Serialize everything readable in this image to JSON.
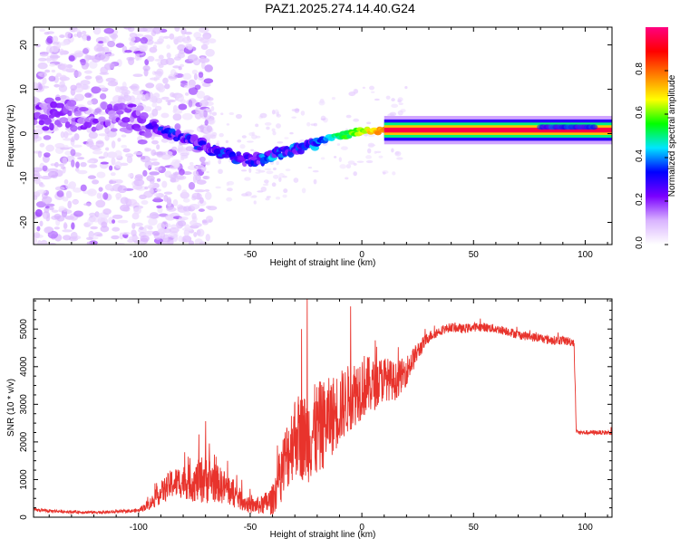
{
  "title": "PAZ1.2025.274.14.40.G24",
  "colors": {
    "snr_line": "#e8332c",
    "frame": "#000000",
    "background": "#ffffff"
  },
  "chart_data": [
    {
      "type": "heatmap",
      "name": "spectrogram",
      "xlabel": "Height of straight line (km)",
      "ylabel": "Frequency (Hz)",
      "xlim": [
        -147,
        112
      ],
      "ylim": [
        -25,
        24
      ],
      "xticks": [
        -100,
        -50,
        0,
        50,
        100
      ],
      "yticks": [
        -20,
        -10,
        0,
        10,
        20
      ],
      "ridge": [
        {
          "x": -147,
          "f": 4.0
        },
        {
          "x": -120,
          "f": 4.0
        },
        {
          "x": -100,
          "f": 3.5
        },
        {
          "x": -90,
          "f": 1.0
        },
        {
          "x": -80,
          "f": -1.0
        },
        {
          "x": -70,
          "f": -3.0
        },
        {
          "x": -60,
          "f": -5.0
        },
        {
          "x": -50,
          "f": -6.0
        },
        {
          "x": -40,
          "f": -5.0
        },
        {
          "x": -30,
          "f": -3.5
        },
        {
          "x": -20,
          "f": -2.0
        },
        {
          "x": -10,
          "f": -0.5
        },
        {
          "x": 0,
          "f": 0.5
        },
        {
          "x": 10,
          "f": 0.8
        },
        {
          "x": 50,
          "f": 0.8
        },
        {
          "x": 90,
          "f": 0.8
        },
        {
          "x": 112,
          "f": 0.8
        }
      ],
      "colorbar": {
        "label": "Normalized spectral amplitude",
        "range": [
          0.0,
          1.0
        ],
        "ticks": [
          0.0,
          0.2,
          0.4,
          0.6,
          0.8
        ],
        "tick_labels": [
          "0.0",
          "0.2",
          "0.4",
          "0.6",
          "0.8"
        ],
        "colormap": [
          "#ffffff",
          "#d9b3ff",
          "#7a00ff",
          "#0000ff",
          "#00e5ff",
          "#00ff00",
          "#ffff00",
          "#ff8000",
          "#ff0000",
          "#ff0080"
        ]
      }
    },
    {
      "type": "line",
      "name": "snr",
      "xlabel": "Height of straight line (km)",
      "ylabel": "SNR (10 * v/v)",
      "xlim": [
        -147,
        112
      ],
      "ylim": [
        0,
        5800
      ],
      "xticks": [
        -100,
        -50,
        0,
        50,
        100
      ],
      "yticks": [
        0,
        1000,
        2000,
        3000,
        4000,
        5000
      ],
      "series": [
        {
          "name": "SNR",
          "x": [
            -147,
            -140,
            -130,
            -120,
            -110,
            -100,
            -95,
            -90,
            -85,
            -80,
            -75,
            -70,
            -65,
            -60,
            -55,
            -50,
            -45,
            -40,
            -35,
            -30,
            -25,
            -20,
            -15,
            -10,
            -5,
            0,
            5,
            10,
            15,
            20,
            25,
            30,
            35,
            40,
            45,
            50,
            55,
            60,
            65,
            70,
            75,
            80,
            85,
            90,
            95,
            96,
            97,
            100,
            105,
            112
          ],
          "values": [
            200,
            170,
            140,
            130,
            140,
            180,
            350,
            650,
            900,
            950,
            900,
            1050,
            900,
            750,
            500,
            300,
            320,
            450,
            1400,
            2200,
            2100,
            2300,
            2600,
            2900,
            3200,
            3500,
            3500,
            3700,
            3600,
            3900,
            4400,
            4800,
            4950,
            5050,
            5000,
            5050,
            5050,
            5000,
            4950,
            4850,
            4800,
            4750,
            4700,
            4700,
            4650,
            2300,
            2250,
            2250,
            2250,
            2250
          ],
          "noise": [
            40,
            40,
            40,
            40,
            40,
            50,
            150,
            300,
            400,
            450,
            500,
            700,
            500,
            450,
            300,
            200,
            250,
            400,
            900,
            1100,
            1200,
            1300,
            1100,
            1000,
            900,
            900,
            700,
            600,
            500,
            400,
            250,
            150,
            120,
            120,
            120,
            120,
            120,
            120,
            120,
            120,
            120,
            120,
            120,
            120,
            120,
            80,
            60,
            60,
            60,
            60
          ],
          "peaks": [
            {
              "x": -24.5,
              "y": 5800
            },
            {
              "x": -27,
              "y": 5000
            },
            {
              "x": -5,
              "y": 5600
            },
            {
              "x": 6,
              "y": 4700
            },
            {
              "x": -70,
              "y": 2550
            },
            {
              "x": -73,
              "y": 2200
            }
          ]
        }
      ]
    }
  ]
}
